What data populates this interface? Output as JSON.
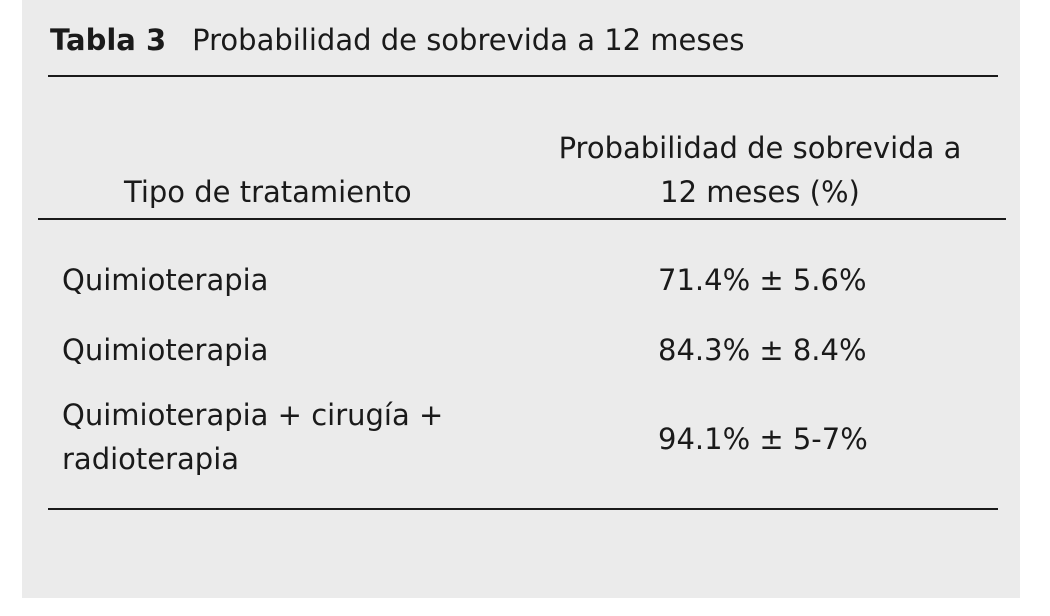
{
  "caption": {
    "label": "Tabla 3",
    "title": "Probabilidad de sobrevida a 12 meses"
  },
  "table": {
    "headers": {
      "col1": "Tipo de tratamiento",
      "col2_line1": "Probabilidad de sobrevida a",
      "col2_line2": "12 meses (%)"
    },
    "rows": [
      {
        "treatment": "Quimioterapia",
        "probability": "71.4% ± 5.6%"
      },
      {
        "treatment": "Quimioterapia",
        "probability": "84.3% ± 8.4%"
      },
      {
        "treatment_line1": "Quimioterapia + cirugía +",
        "treatment_line2": "radioterapia",
        "probability": "94.1% ± 5-7%"
      }
    ]
  }
}
